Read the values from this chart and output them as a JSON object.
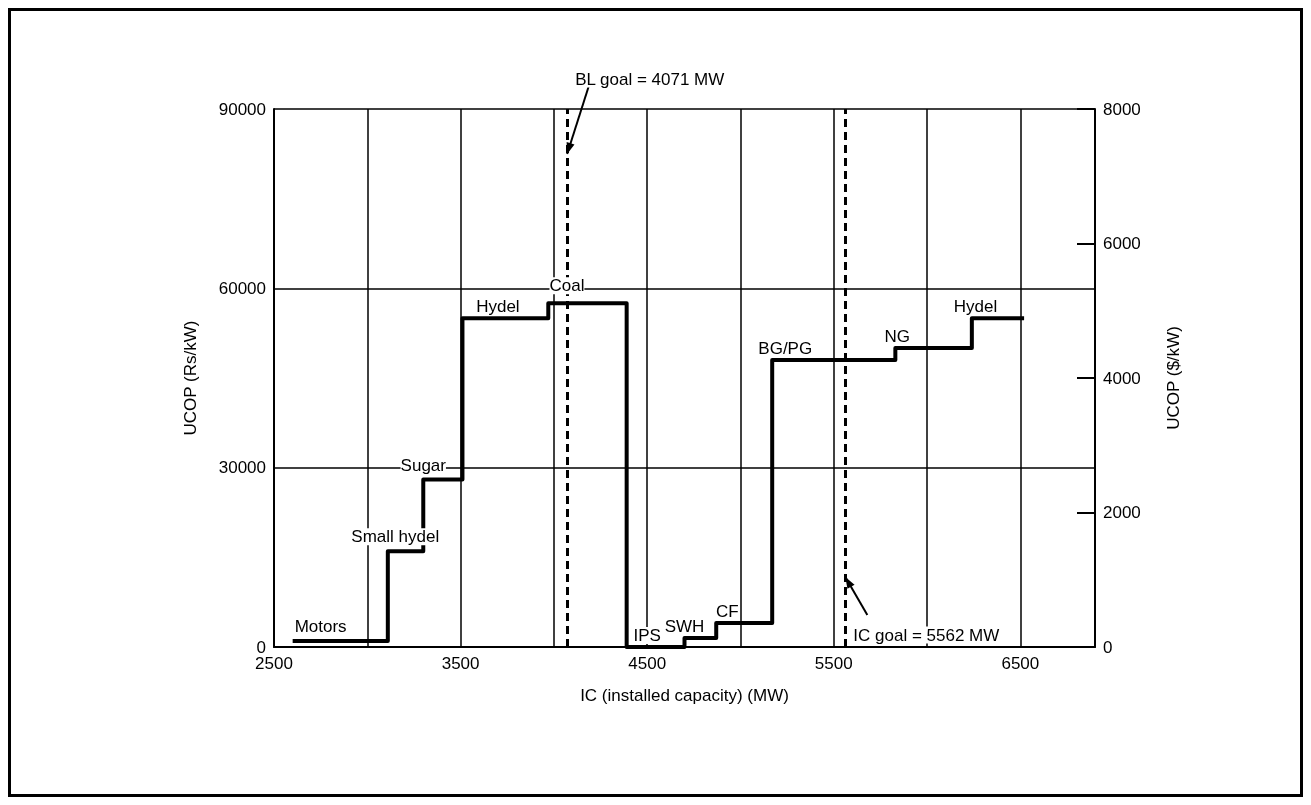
{
  "chart_data": {
    "type": "step",
    "xlabel": "IC (installed capacity) (MW)",
    "ylabel": "UCOP (Rs/kW)",
    "y2label": "UCOP ($/kW)",
    "series": [
      {
        "color": "#000000",
        "x": [
          2600,
          3110,
          3300,
          3510,
          3970,
          4390,
          4700,
          4870,
          5170,
          5830,
          6240,
          6520
        ],
        "values": [
          1000,
          16000,
          28000,
          55000,
          57500,
          0,
          1500,
          4000,
          48000,
          50000,
          55000,
          55000
        ]
      }
    ],
    "xlim": [
      2500,
      6900
    ],
    "xticks": [
      2500,
      {
        "value": 3000,
        "label": null
      },
      3500,
      {
        "value": 4000,
        "label": null
      },
      4500,
      {
        "value": 5000,
        "label": null
      },
      5500,
      {
        "value": 6000,
        "label": null
      },
      6500
    ],
    "ylim": [
      0,
      90000
    ],
    "yticks": [
      0,
      30000,
      60000,
      90000
    ],
    "y2lim": [
      0,
      8000
    ],
    "y2ticks": [
      0,
      2000,
      4000,
      6000,
      8000
    ],
    "grid": true,
    "ref_lines": [
      {
        "axis": "x",
        "value": 4071,
        "label": "BL goal = 4071 MW",
        "line_style": "dashed",
        "color": "#000000"
      },
      {
        "axis": "x",
        "value": 5562,
        "label": "IC goal = 5562 MW",
        "line_style": "dashed",
        "color": "#000000"
      }
    ],
    "annotations": [
      {
        "text": "Motors",
        "x": 2750,
        "y": 1500
      },
      {
        "text": "Small hydel",
        "x": 3150,
        "y": 16500
      },
      {
        "text": "Sugar",
        "x": 3300,
        "y": 28500
      },
      {
        "text": "Hydel",
        "x": 3700,
        "y": 55000
      },
      {
        "text": "Coal",
        "x": 4070,
        "y": 58500
      },
      {
        "text": "IPS",
        "x": 4500,
        "y": 0
      },
      {
        "text": "SWH",
        "x": 4700,
        "y": 1500
      },
      {
        "text": "CF",
        "x": 4930,
        "y": 4000
      },
      {
        "text": "BG/PG",
        "x": 5240,
        "y": 48000
      },
      {
        "text": "NG",
        "x": 5840,
        "y": 50000
      },
      {
        "text": "Hydel",
        "x": 6260,
        "y": 55000
      }
    ]
  }
}
